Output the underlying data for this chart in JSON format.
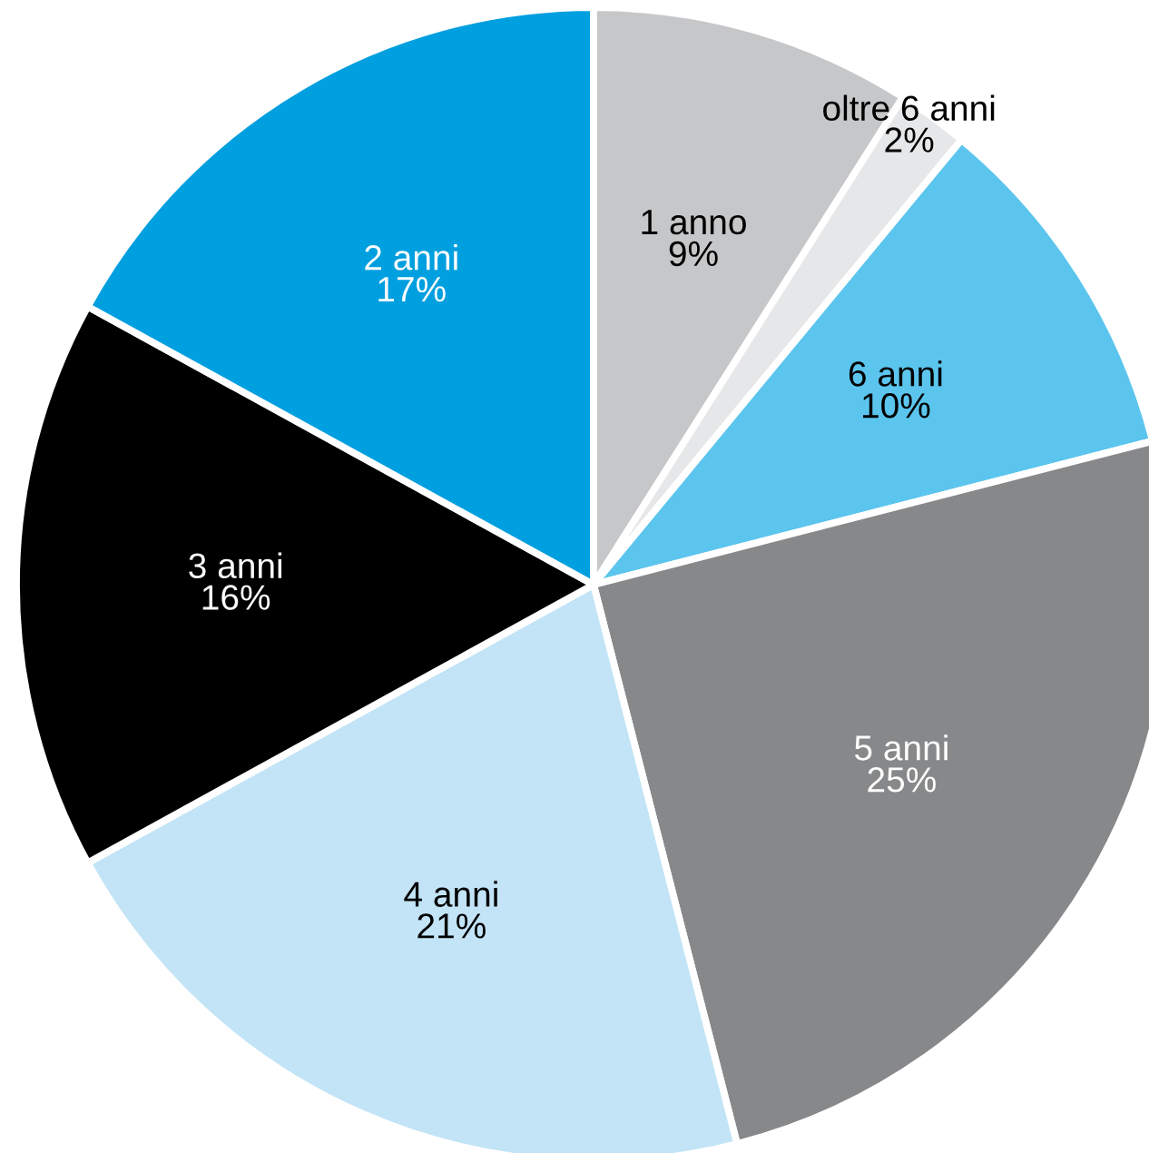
{
  "chart_data": {
    "type": "pie",
    "categories": [
      "1 anno",
      "oltre 6 anni",
      "6 anni",
      "5 anni",
      "4 anni",
      "3 anni",
      "2 anni"
    ],
    "values": [
      9,
      2,
      10,
      25,
      21,
      16,
      17
    ],
    "colors": [
      "#c6c7c9",
      "#e6e7e8",
      "#5bc5ee",
      "#87888a",
      "#c2e4f6",
      "#000000",
      "#009fdf"
    ],
    "value_labels": [
      "9%",
      "2%",
      "10%",
      "25%",
      "21%",
      "16%",
      "17%"
    ]
  }
}
